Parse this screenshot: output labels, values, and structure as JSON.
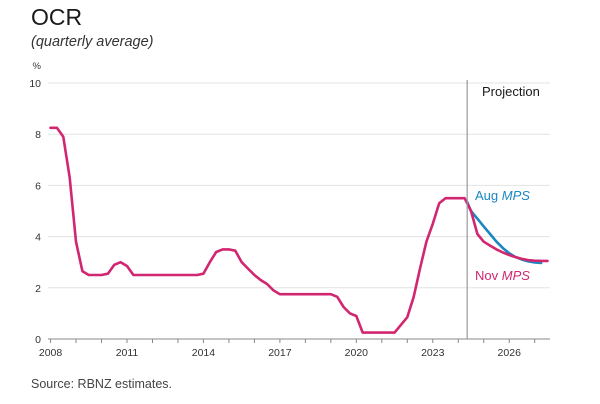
{
  "title": "OCR",
  "subtitle": "(quarterly average)",
  "source": "Source: RBNZ estimates.",
  "chart_data": {
    "type": "line",
    "ylabel": "%",
    "ylim": [
      0,
      10
    ],
    "yticks": [
      0,
      2,
      4,
      6,
      8,
      10
    ],
    "xlim": [
      2007.9,
      2027.6
    ],
    "xticks": [
      2008,
      2011,
      2014,
      2017,
      2020,
      2023,
      2026
    ],
    "grid": "horizontal",
    "projection_start": 2024.35,
    "projection_label": "Projection",
    "colors": {
      "nov": "#d12670",
      "aug": "#1a87c0",
      "grid": "#e3e3e3",
      "axis": "#888888",
      "divider": "#9a9a9a"
    },
    "series": [
      {
        "key": "nov",
        "label_prefix": "Nov",
        "label_suffix": "MPS",
        "x": [
          2008.0,
          2008.25,
          2008.5,
          2008.75,
          2009.0,
          2009.25,
          2009.5,
          2009.75,
          2010.0,
          2010.25,
          2010.5,
          2010.75,
          2011.0,
          2011.25,
          2011.5,
          2011.75,
          2012.0,
          2012.25,
          2012.5,
          2012.75,
          2013.0,
          2013.25,
          2013.5,
          2013.75,
          2014.0,
          2014.25,
          2014.5,
          2014.75,
          2015.0,
          2015.25,
          2015.5,
          2015.75,
          2016.0,
          2016.25,
          2016.5,
          2016.75,
          2017.0,
          2017.25,
          2017.5,
          2017.75,
          2018.0,
          2018.25,
          2018.5,
          2018.75,
          2019.0,
          2019.25,
          2019.5,
          2019.75,
          2020.0,
          2020.25,
          2020.5,
          2020.75,
          2021.0,
          2021.25,
          2021.5,
          2021.75,
          2022.0,
          2022.25,
          2022.5,
          2022.75,
          2023.0,
          2023.25,
          2023.5,
          2023.75,
          2024.0,
          2024.25,
          2024.5,
          2024.75,
          2025.0,
          2025.25,
          2025.5,
          2025.75,
          2026.0,
          2026.25,
          2026.5,
          2026.75,
          2027.0,
          2027.25,
          2027.5
        ],
        "values": [
          8.25,
          8.25,
          7.9,
          6.3,
          3.8,
          2.65,
          2.5,
          2.5,
          2.5,
          2.55,
          2.9,
          3.0,
          2.85,
          2.5,
          2.5,
          2.5,
          2.5,
          2.5,
          2.5,
          2.5,
          2.5,
          2.5,
          2.5,
          2.5,
          2.55,
          3.0,
          3.4,
          3.5,
          3.5,
          3.45,
          3.0,
          2.75,
          2.5,
          2.3,
          2.15,
          1.9,
          1.75,
          1.75,
          1.75,
          1.75,
          1.75,
          1.75,
          1.75,
          1.75,
          1.75,
          1.65,
          1.25,
          1.0,
          0.9,
          0.25,
          0.25,
          0.25,
          0.25,
          0.25,
          0.25,
          0.55,
          0.85,
          1.65,
          2.75,
          3.8,
          4.5,
          5.3,
          5.5,
          5.5,
          5.5,
          5.5,
          5.0,
          4.1,
          3.8,
          3.65,
          3.5,
          3.38,
          3.28,
          3.2,
          3.13,
          3.08,
          3.06,
          3.05,
          3.05
        ]
      },
      {
        "key": "aug",
        "label_prefix": "Aug",
        "label_suffix": "MPS",
        "x": [
          2024.35,
          2024.5,
          2024.75,
          2025.0,
          2025.25,
          2025.5,
          2025.75,
          2026.0,
          2026.25,
          2026.5,
          2026.75,
          2027.0,
          2027.25
        ],
        "values": [
          5.35,
          5.0,
          4.7,
          4.4,
          4.1,
          3.8,
          3.55,
          3.35,
          3.2,
          3.1,
          3.03,
          2.99,
          2.97
        ]
      }
    ]
  }
}
